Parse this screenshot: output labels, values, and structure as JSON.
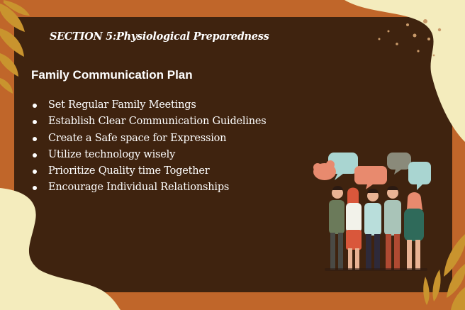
{
  "section_title": "SECTION 5:Physiological Preparedness",
  "heading": "Family Communication Plan",
  "items": [
    "Set Regular Family Meetings",
    "Establish Clear Communication Guidelines",
    "Create a Safe space for Expression",
    "Utilize technology wisely",
    "Prioritize Quality time Together",
    "Encourage Individual Relationships"
  ],
  "colors": {
    "frame": "#c0662a",
    "card": "#3f230f",
    "blob": "#f4ecbd",
    "leaf": "#c9942e",
    "text": "#ffffff"
  }
}
